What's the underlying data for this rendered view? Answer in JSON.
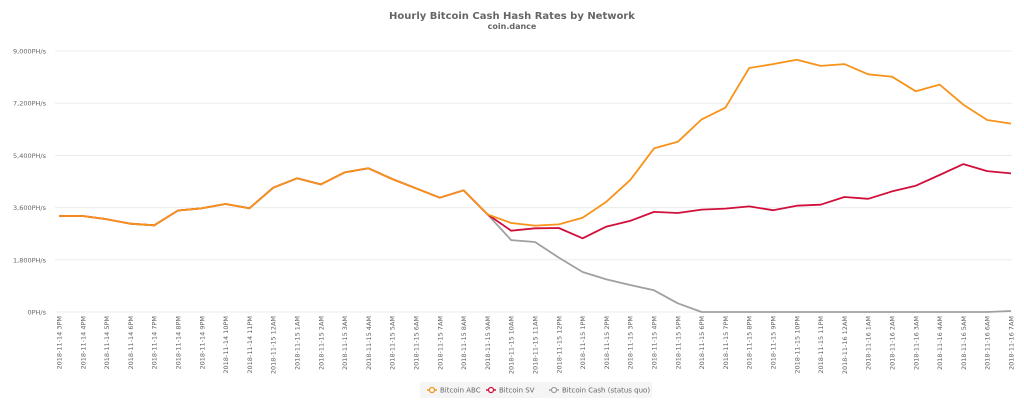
{
  "chart_data": {
    "type": "line",
    "title": "Hourly Bitcoin Cash Hash Rates by Network",
    "subtitle": "coin.dance",
    "xlabel": "",
    "ylabel": "",
    "ylim": [
      0,
      9000
    ],
    "yticks": [
      0,
      1800,
      3600,
      5400,
      7200,
      9000
    ],
    "ytick_labels": [
      "0PH/s",
      "1,800PH/s",
      "3,600PH/s",
      "5,400PH/s",
      "7,200PH/s",
      "9,000PH/s"
    ],
    "grid": true,
    "legend_position": "bottom",
    "categories": [
      "2018-11-14 3PM",
      "2018-11-14 4PM",
      "2018-11-14 5PM",
      "2018-11-14 6PM",
      "2018-11-14 7PM",
      "2018-11-14 8PM",
      "2018-11-14 9PM",
      "2018-11-14 10PM",
      "2018-11-14 11PM",
      "2018-11-15 12AM",
      "2018-11-15 1AM",
      "2018-11-15 2AM",
      "2018-11-15 3AM",
      "2018-11-15 4AM",
      "2018-11-15 5AM",
      "2018-11-15 6AM",
      "2018-11-15 7AM",
      "2018-11-15 8AM",
      "2018-11-15 9AM",
      "2018-11-15 10AM",
      "2018-11-15 11AM",
      "2018-11-15 12PM",
      "2018-11-15 1PM",
      "2018-11-15 2PM",
      "2018-11-15 3PM",
      "2018-11-15 4PM",
      "2018-11-15 5PM",
      "2018-11-15 6PM",
      "2018-11-15 7PM",
      "2018-11-15 8PM",
      "2018-11-15 9PM",
      "2018-11-15 10PM",
      "2018-11-15 11PM",
      "2018-11-16 12AM",
      "2018-11-16 1AM",
      "2018-11-16 2AM",
      "2018-11-16 3AM",
      "2018-11-16 4AM",
      "2018-11-16 5AM",
      "2018-11-16 6AM",
      "2018-11-16 7AM"
    ],
    "series": [
      {
        "name": "Bitcoin ABC",
        "color": "#f7931a",
        "values": [
          3310,
          3310,
          3200,
          3045,
          2990,
          3500,
          3575,
          3725,
          3575,
          4285,
          4610,
          4400,
          4815,
          4955,
          4585,
          4265,
          3940,
          4195,
          3370,
          3070,
          2980,
          3020,
          3250,
          3805,
          4550,
          5640,
          5870,
          6640,
          7045,
          8415,
          8550,
          8700,
          8485,
          8550,
          8195,
          8115,
          7610,
          7840,
          7150,
          6620,
          6495
        ]
      },
      {
        "name": "Bitcoin SV",
        "color": "#d0103a",
        "values": [
          3310,
          3310,
          3200,
          3045,
          2990,
          3500,
          3575,
          3725,
          3575,
          4285,
          4610,
          4400,
          4815,
          4955,
          4585,
          4265,
          3940,
          4195,
          3370,
          2805,
          2885,
          2895,
          2540,
          2945,
          3140,
          3450,
          3415,
          3530,
          3565,
          3640,
          3510,
          3665,
          3700,
          3965,
          3905,
          4160,
          4355,
          4725,
          5100,
          4860,
          4780
        ]
      },
      {
        "name": "Bitcoin Cash (status quo)",
        "color": "#a0a0a0",
        "values": [
          3310,
          3310,
          3200,
          3045,
          2990,
          3500,
          3575,
          3725,
          3575,
          4285,
          4610,
          4400,
          4815,
          4955,
          4585,
          4265,
          3940,
          4195,
          3370,
          2480,
          2415,
          1875,
          1380,
          1125,
          930,
          750,
          300,
          0,
          0,
          0,
          0,
          0,
          0,
          0,
          0,
          0,
          0,
          0,
          0,
          0,
          35
        ]
      }
    ]
  }
}
